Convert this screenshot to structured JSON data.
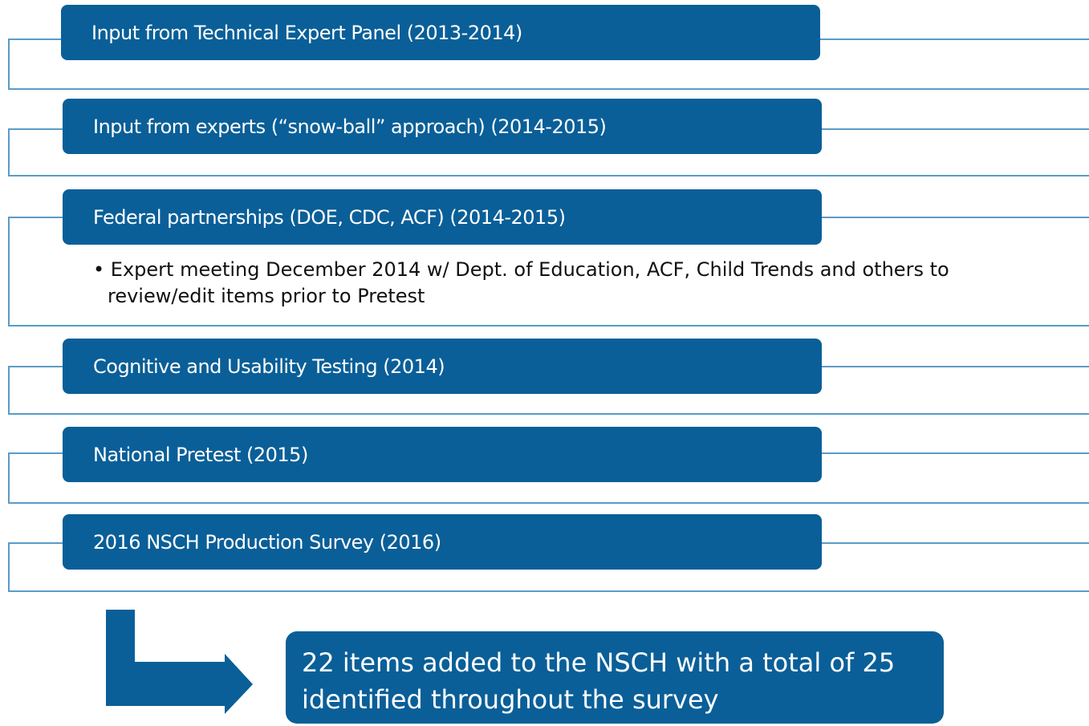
{
  "steps": [
    {
      "label": "Input from Technical Expert Panel (2013-2014)"
    },
    {
      "label": "Input from experts (“snow-ball” approach) (2014-2015)"
    },
    {
      "label": "Federal partnerships (DOE, CDC, ACF) (2014-2015)",
      "bullets": [
        "Expert meeting December 2014 w/ Dept. of Education, ACF, Child Trends and others to review/edit items prior to Pretest"
      ]
    },
    {
      "label": "Cognitive and Usability Testing (2014)"
    },
    {
      "label": "National Pretest (2015)"
    },
    {
      "label": "2016 NSCH Production Survey (2016)"
    }
  ],
  "result": "22 items added to the NSCH with a total of 25 identified throughout the survey"
}
